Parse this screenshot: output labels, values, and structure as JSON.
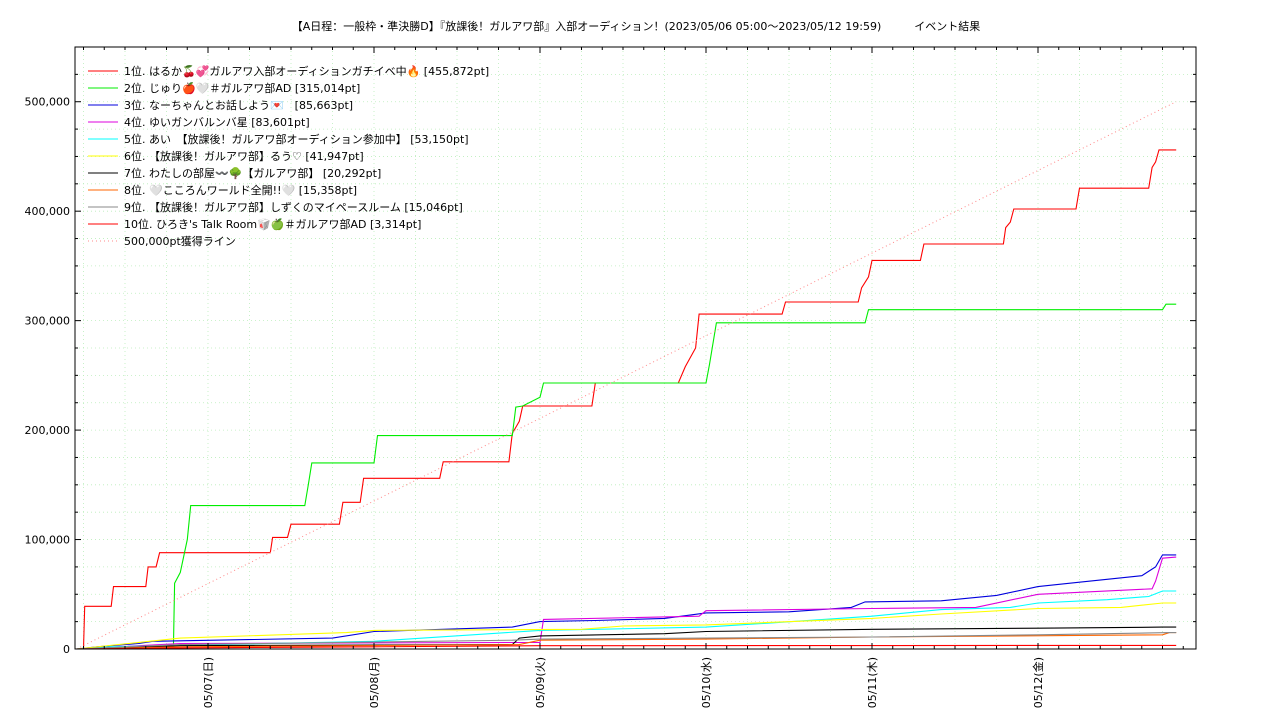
{
  "chart_data": {
    "type": "line",
    "title": "【A日程：一般枠・準決勝D】『放課後！ガルアワ部』入部オーディション！(2023/05/06 05:00〜2023/05/12 19:59)　　　イベント結果",
    "xlabel": "",
    "ylabel": "",
    "x_range": [
      "2023-05-06 05:00",
      "2023-05-12 19:59"
    ],
    "ylim": [
      0,
      550000
    ],
    "y_ticks": [
      0,
      100000,
      200000,
      300000,
      400000,
      500000
    ],
    "y_tick_labels": [
      "0",
      "100,000",
      "200,000",
      "300,000",
      "400,000",
      "500,000"
    ],
    "x_tick_labels": [
      "05/07(日)",
      "05/08(月)",
      "05/09(火)",
      "05/10(水)",
      "05/11(木)",
      "05/12(金)"
    ],
    "x_tick_dates": [
      "2023-05-07 00:00",
      "2023-05-08 00:00",
      "2023-05-09 00:00",
      "2023-05-10 00:00",
      "2023-05-11 00:00",
      "2023-05-12 00:00"
    ],
    "grid": true,
    "legend_position": "top-left",
    "series": [
      {
        "name": "1位. はるか🍒💞ガルアワ入部オーディションガチイベ中🔥 [455,872pt]",
        "color": "#ff0000",
        "style": "solid",
        "points": [
          [
            "2023-05-06 06:00",
            0
          ],
          [
            "2023-05-06 06:10",
            39000
          ],
          [
            "2023-05-06 10:00",
            39000
          ],
          [
            "2023-05-06 10:20",
            57000
          ],
          [
            "2023-05-06 15:00",
            57000
          ],
          [
            "2023-05-06 15:20",
            75000
          ],
          [
            "2023-05-06 16:30",
            75000
          ],
          [
            "2023-05-06 17:00",
            88000
          ],
          [
            "2023-05-07 09:00",
            88000
          ],
          [
            "2023-05-07 09:20",
            102000
          ],
          [
            "2023-05-07 11:30",
            102000
          ],
          [
            "2023-05-07 12:00",
            114000
          ],
          [
            "2023-05-07 19:00",
            114000
          ],
          [
            "2023-05-07 19:30",
            134000
          ],
          [
            "2023-05-07 22:00",
            134000
          ],
          [
            "2023-05-07 22:30",
            156000
          ],
          [
            "2023-05-08 09:30",
            156000
          ],
          [
            "2023-05-08 10:00",
            171000
          ],
          [
            "2023-05-08 19:30",
            171000
          ],
          [
            "2023-05-08 20:00",
            197000
          ],
          [
            "2023-05-08 21:00",
            208000
          ],
          [
            "2023-05-08 21:30",
            222000
          ],
          [
            "2023-05-09 07:30",
            222000
          ],
          [
            "2023-05-09 08:00",
            243000
          ],
          [
            "2023-05-09 20:00",
            243000
          ],
          [
            "2023-05-09 21:00",
            258000
          ],
          [
            "2023-05-09 22:30",
            275000
          ],
          [
            "2023-05-09 23:00",
            306000
          ],
          [
            "2023-05-10 11:00",
            306000
          ],
          [
            "2023-05-10 11:30",
            317000
          ],
          [
            "2023-05-10 22:00",
            317000
          ],
          [
            "2023-05-10 22:30",
            330000
          ],
          [
            "2023-05-10 23:30",
            340000
          ],
          [
            "2023-05-11 00:00",
            355000
          ],
          [
            "2023-05-11 07:00",
            355000
          ],
          [
            "2023-05-11 07:30",
            370000
          ],
          [
            "2023-05-11 19:00",
            370000
          ],
          [
            "2023-05-11 19:20",
            385000
          ],
          [
            "2023-05-11 20:00",
            390000
          ],
          [
            "2023-05-11 20:30",
            402000
          ],
          [
            "2023-05-12 05:30",
            402000
          ],
          [
            "2023-05-12 06:00",
            421000
          ],
          [
            "2023-05-12 16:00",
            421000
          ],
          [
            "2023-05-12 16:30",
            440000
          ],
          [
            "2023-05-12 17:00",
            445000
          ],
          [
            "2023-05-12 17:30",
            456000
          ],
          [
            "2023-05-12 19:59",
            456000
          ]
        ]
      },
      {
        "name": "2位. じゅり🍎🤍＃ガルアワ部AD [315,014pt]",
        "color": "#00ee00",
        "style": "solid",
        "points": [
          [
            "2023-05-06 05:00",
            0
          ],
          [
            "2023-05-06 19:00",
            0
          ],
          [
            "2023-05-06 19:10",
            60000
          ],
          [
            "2023-05-06 20:00",
            70000
          ],
          [
            "2023-05-06 21:00",
            100000
          ],
          [
            "2023-05-06 21:30",
            131000
          ],
          [
            "2023-05-07 14:00",
            131000
          ],
          [
            "2023-05-07 14:30",
            150000
          ],
          [
            "2023-05-07 15:00",
            170000
          ],
          [
            "2023-05-08 00:00",
            170000
          ],
          [
            "2023-05-08 00:30",
            195000
          ],
          [
            "2023-05-08 20:00",
            195000
          ],
          [
            "2023-05-08 20:30",
            221000
          ],
          [
            "2023-05-08 21:30",
            222000
          ],
          [
            "2023-05-09 00:00",
            230000
          ],
          [
            "2023-05-09 00:30",
            243000
          ],
          [
            "2023-05-09 08:00",
            243000
          ],
          [
            "2023-05-10 00:00",
            243000
          ],
          [
            "2023-05-10 00:30",
            260000
          ],
          [
            "2023-05-10 01:30",
            298000
          ],
          [
            "2023-05-10 23:00",
            298000
          ],
          [
            "2023-05-10 23:30",
            310000
          ],
          [
            "2023-05-12 18:00",
            310000
          ],
          [
            "2023-05-12 18:30",
            315000
          ],
          [
            "2023-05-12 19:59",
            315000
          ]
        ]
      },
      {
        "name": "3位. なーちゃんとお話しよう💌　[85,663pt]",
        "color": "#0000dd",
        "style": "solid",
        "points": [
          [
            "2023-05-06 05:00",
            0
          ],
          [
            "2023-05-06 08:00",
            2000
          ],
          [
            "2023-05-06 14:00",
            5000
          ],
          [
            "2023-05-06 16:00",
            7000
          ],
          [
            "2023-05-07 18:00",
            10000
          ],
          [
            "2023-05-08 00:00",
            16000
          ],
          [
            "2023-05-08 20:00",
            20000
          ],
          [
            "2023-05-09 00:00",
            25000
          ],
          [
            "2023-05-09 08:00",
            26000
          ],
          [
            "2023-05-09 18:00",
            28000
          ],
          [
            "2023-05-10 00:00",
            33000
          ],
          [
            "2023-05-10 12:00",
            34000
          ],
          [
            "2023-05-10 21:00",
            38000
          ],
          [
            "2023-05-10 23:00",
            43000
          ],
          [
            "2023-05-11 10:00",
            44000
          ],
          [
            "2023-05-11 18:00",
            49000
          ],
          [
            "2023-05-12 00:00",
            57000
          ],
          [
            "2023-05-12 06:00",
            61000
          ],
          [
            "2023-05-12 15:00",
            67000
          ],
          [
            "2023-05-12 17:00",
            75000
          ],
          [
            "2023-05-12 18:00",
            86000
          ],
          [
            "2023-05-12 19:59",
            86000
          ]
        ]
      },
      {
        "name": "4位. ゆいガンバルンバ星 [83,601pt]",
        "color": "#dd00dd",
        "style": "solid",
        "points": [
          [
            "2023-05-06 05:00",
            0
          ],
          [
            "2023-05-06 20:00",
            5000
          ],
          [
            "2023-05-09 00:00",
            6000
          ],
          [
            "2023-05-09 00:30",
            27000
          ],
          [
            "2023-05-09 23:00",
            30000
          ],
          [
            "2023-05-10 00:00",
            35000
          ],
          [
            "2023-05-11 00:00",
            37000
          ],
          [
            "2023-05-11 15:00",
            38000
          ],
          [
            "2023-05-12 00:00",
            50000
          ],
          [
            "2023-05-12 16:30",
            55000
          ],
          [
            "2023-05-12 17:00",
            62000
          ],
          [
            "2023-05-12 18:00",
            83000
          ],
          [
            "2023-05-12 19:59",
            84000
          ]
        ]
      },
      {
        "name": "5位. あい　【放課後！ガルアワ部オーディション参加中】 [53,150pt]",
        "color": "#00ffff",
        "style": "solid",
        "points": [
          [
            "2023-05-06 05:00",
            0
          ],
          [
            "2023-05-06 10:00",
            2000
          ],
          [
            "2023-05-08 00:00",
            7000
          ],
          [
            "2023-05-09 00:00",
            17000
          ],
          [
            "2023-05-10 00:00",
            20000
          ],
          [
            "2023-05-10 10:00",
            24000
          ],
          [
            "2023-05-11 00:00",
            30000
          ],
          [
            "2023-05-11 10:00",
            36000
          ],
          [
            "2023-05-11 20:00",
            38000
          ],
          [
            "2023-05-12 00:00",
            42000
          ],
          [
            "2023-05-12 10:00",
            45000
          ],
          [
            "2023-05-12 16:00",
            48000
          ],
          [
            "2023-05-12 18:00",
            53000
          ],
          [
            "2023-05-12 19:59",
            53000
          ]
        ]
      },
      {
        "name": "6位. 【放課後！ガルアワ部】るう♡ [41,947pt]",
        "color": "#ffff00",
        "style": "solid",
        "points": [
          [
            "2023-05-06 05:00",
            0
          ],
          [
            "2023-05-06 20:00",
            10000
          ],
          [
            "2023-05-07 20:00",
            15000
          ],
          [
            "2023-05-08 00:00",
            17000
          ],
          [
            "2023-05-09 06:00",
            18000
          ],
          [
            "2023-05-09 12:00",
            21000
          ],
          [
            "2023-05-10 00:00",
            22000
          ],
          [
            "2023-05-11 00:00",
            28000
          ],
          [
            "2023-05-11 10:00",
            32000
          ],
          [
            "2023-05-12 00:00",
            37000
          ],
          [
            "2023-05-12 12:00",
            38000
          ],
          [
            "2023-05-12 18:00",
            42000
          ],
          [
            "2023-05-12 19:59",
            42000
          ]
        ]
      },
      {
        "name": "7位. わたしの部屋〰️🌳【ガルアワ部】 [20,292pt]",
        "color": "#000000",
        "style": "solid",
        "points": [
          [
            "2023-05-06 05:00",
            0
          ],
          [
            "2023-05-06 20:00",
            3000
          ],
          [
            "2023-05-08 20:00",
            4000
          ],
          [
            "2023-05-08 21:00",
            10000
          ],
          [
            "2023-05-09 00:00",
            12000
          ],
          [
            "2023-05-09 18:00",
            14000
          ],
          [
            "2023-05-10 00:00",
            16000
          ],
          [
            "2023-05-11 00:00",
            18000
          ],
          [
            "2023-05-12 00:00",
            19000
          ],
          [
            "2023-05-12 18:00",
            20000
          ],
          [
            "2023-05-12 19:59",
            20000
          ]
        ]
      },
      {
        "name": "8位. 🤍こころんワールド全開!!🤍 [15,358pt]",
        "color": "#ff6600",
        "style": "solid",
        "points": [
          [
            "2023-05-06 05:00",
            0
          ],
          [
            "2023-05-06 20:00",
            2000
          ],
          [
            "2023-05-08 21:00",
            4000
          ],
          [
            "2023-05-09 00:00",
            8000
          ],
          [
            "2023-05-10 00:00",
            9000
          ],
          [
            "2023-05-11 00:00",
            11000
          ],
          [
            "2023-05-12 18:00",
            13000
          ],
          [
            "2023-05-12 19:00",
            15000
          ],
          [
            "2023-05-12 19:59",
            15000
          ]
        ]
      },
      {
        "name": "9位. 【放課後！ガルアワ部】しずくのマイペースルーム [15,046pt]",
        "color": "#888888",
        "style": "solid",
        "points": [
          [
            "2023-05-06 05:00",
            0
          ],
          [
            "2023-05-06 20:00",
            4000
          ],
          [
            "2023-05-07 20:00",
            6000
          ],
          [
            "2023-05-08 20:00",
            8000
          ],
          [
            "2023-05-09 00:00",
            9000
          ],
          [
            "2023-05-10 00:00",
            10000
          ],
          [
            "2023-05-11 00:00",
            11000
          ],
          [
            "2023-05-12 00:00",
            13000
          ],
          [
            "2023-05-12 19:00",
            15000
          ],
          [
            "2023-05-12 19:59",
            15000
          ]
        ]
      },
      {
        "name": "10位. ひろき's Talk Room🥡🍏＃ガルアワ部AD [3,314pt]",
        "color": "#ff0000",
        "style": "solid",
        "points": [
          [
            "2023-05-06 05:00",
            0
          ],
          [
            "2023-05-06 20:00",
            1000
          ],
          [
            "2023-05-08 00:00",
            2000
          ],
          [
            "2023-05-09 00:00",
            3000
          ],
          [
            "2023-05-12 19:59",
            3300
          ]
        ]
      },
      {
        "name": "500,000pt獲得ライン",
        "color": "#ff8888",
        "style": "dotted",
        "points": [
          [
            "2023-05-06 05:00",
            0
          ],
          [
            "2023-05-12 19:59",
            500000
          ]
        ]
      }
    ]
  }
}
